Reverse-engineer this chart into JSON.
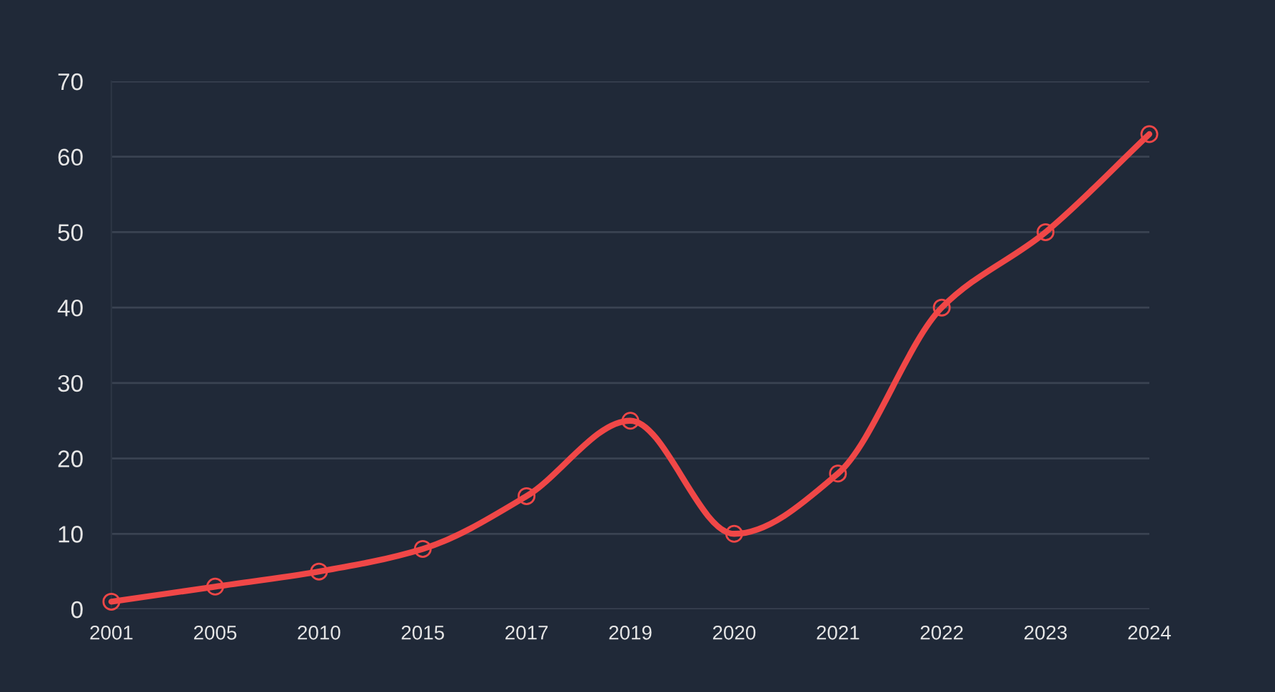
{
  "chart_data": {
    "type": "line",
    "categories": [
      "2001",
      "2005",
      "2010",
      "2015",
      "2017",
      "2019",
      "2020",
      "2021",
      "2022",
      "2023",
      "2024"
    ],
    "series": [
      {
        "color": "#f04747",
        "values": [
          1,
          3,
          5,
          8,
          15,
          25,
          10,
          18,
          40,
          50,
          63
        ]
      }
    ],
    "ylim": [
      0,
      70
    ],
    "yticks": [
      0,
      10,
      20,
      30,
      40,
      50,
      60,
      70
    ],
    "grid": "y",
    "marker": "circle",
    "line_style": "solid"
  }
}
